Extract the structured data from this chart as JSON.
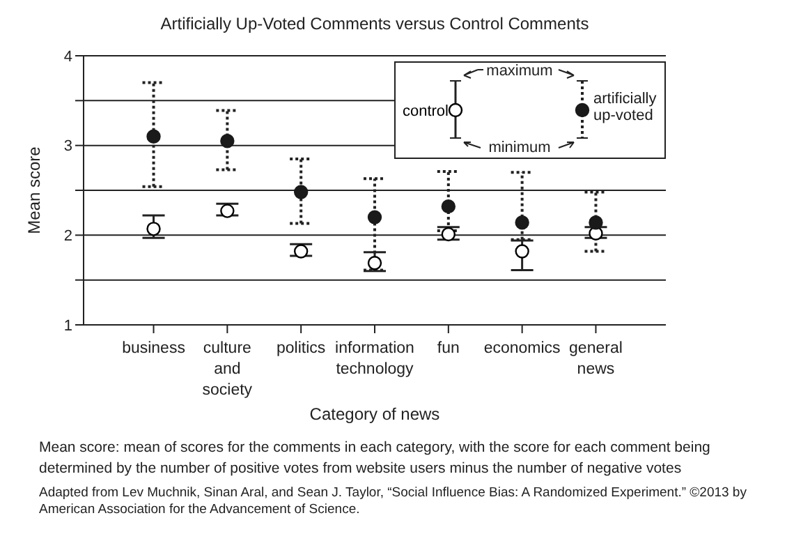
{
  "chart_data": {
    "type": "scatter",
    "title": "Artificially Up-Voted Comments versus Control Comments",
    "xlabel": "Category of news",
    "ylabel": "Mean score",
    "categories": [
      "business",
      "culture and society",
      "politics",
      "information technology",
      "fun",
      "economics",
      "general news"
    ],
    "series": [
      {
        "name": "control",
        "color": "#000000",
        "line_style": "solid",
        "values": [
          2.07,
          2.27,
          1.82,
          1.69,
          2.01,
          1.82,
          2.02
        ],
        "errors": [
          [
            1.97,
            2.22
          ],
          [
            2.22,
            2.35
          ],
          [
            1.77,
            1.9
          ],
          [
            1.6,
            1.81
          ],
          [
            1.95,
            2.09
          ],
          [
            1.61,
            1.94
          ],
          [
            1.97,
            2.09
          ]
        ]
      },
      {
        "name": "artificially up-voted",
        "color": "#1a1a1a",
        "line_style": "dotted",
        "values": [
          3.1,
          3.05,
          2.48,
          2.2,
          2.32,
          2.14,
          2.14
        ],
        "errors": [
          [
            2.54,
            3.7
          ],
          [
            2.73,
            3.39
          ],
          [
            2.13,
            2.85
          ],
          [
            1.61,
            2.63
          ],
          [
            2.05,
            2.71
          ],
          [
            1.95,
            2.7
          ],
          [
            1.82,
            2.48
          ]
        ]
      }
    ],
    "ylim": [
      1,
      4
    ],
    "yticks": [
      1,
      {
        "value": 1.5,
        "label": null
      },
      2,
      {
        "value": 2.5,
        "label": null
      },
      3,
      {
        "value": 3.5,
        "label": null
      },
      4
    ],
    "grid": "y",
    "legend": "top right",
    "marker": "circle",
    "annotations": [
      "maximum",
      "minimum",
      "Mean score: mean of scores for the comments in each category, with the score for each comment being determined by the number of positive votes from website users minus the number of negative votes",
      "Adapted from Lev Muchnik, Sinan Aral, and Sean J. Taylor, “Social Influence Bias: A Randomized Experiment.” ©2013 by American Association for the Advancement of Science."
    ]
  }
}
